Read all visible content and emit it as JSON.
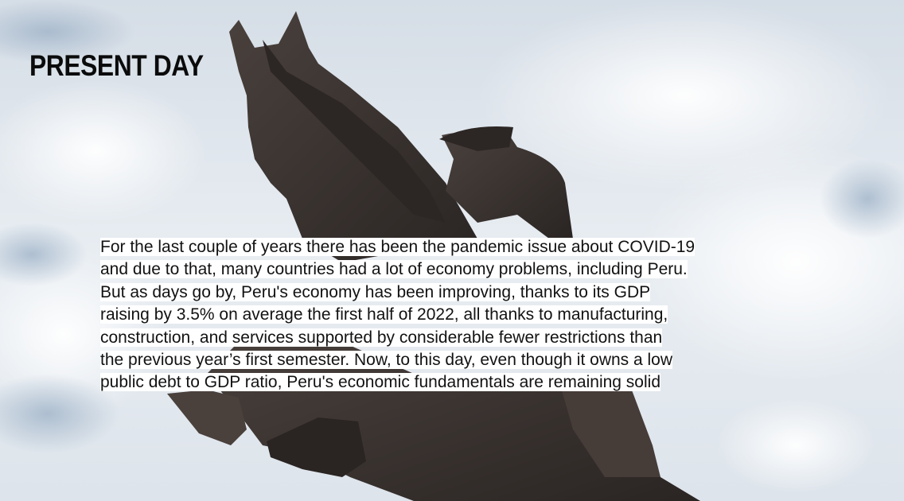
{
  "slide": {
    "title": "PRESENT DAY",
    "body_lines": [
      "For the last couple of years there has been the pandemic issue about COVID-19",
      "and due to that, many countries had a lot of economy problems, including Peru.",
      "But as days go by, Peru's economy has been improving, thanks to its GDP",
      "raising by 3.5% on average the first half of 2022, all thanks to manufacturing,",
      "construction, and services supported by considerable fewer restrictions than",
      "the previous year’s first semester. Now, to this day, even though it owns a low",
      "public debt to GDP ratio, Peru's economic fundamentals are remaining solid"
    ],
    "background": {
      "image": "equestrian-statue-photo",
      "sky_color": "#e6ecf2",
      "statue_color": "#3a3330"
    }
  }
}
